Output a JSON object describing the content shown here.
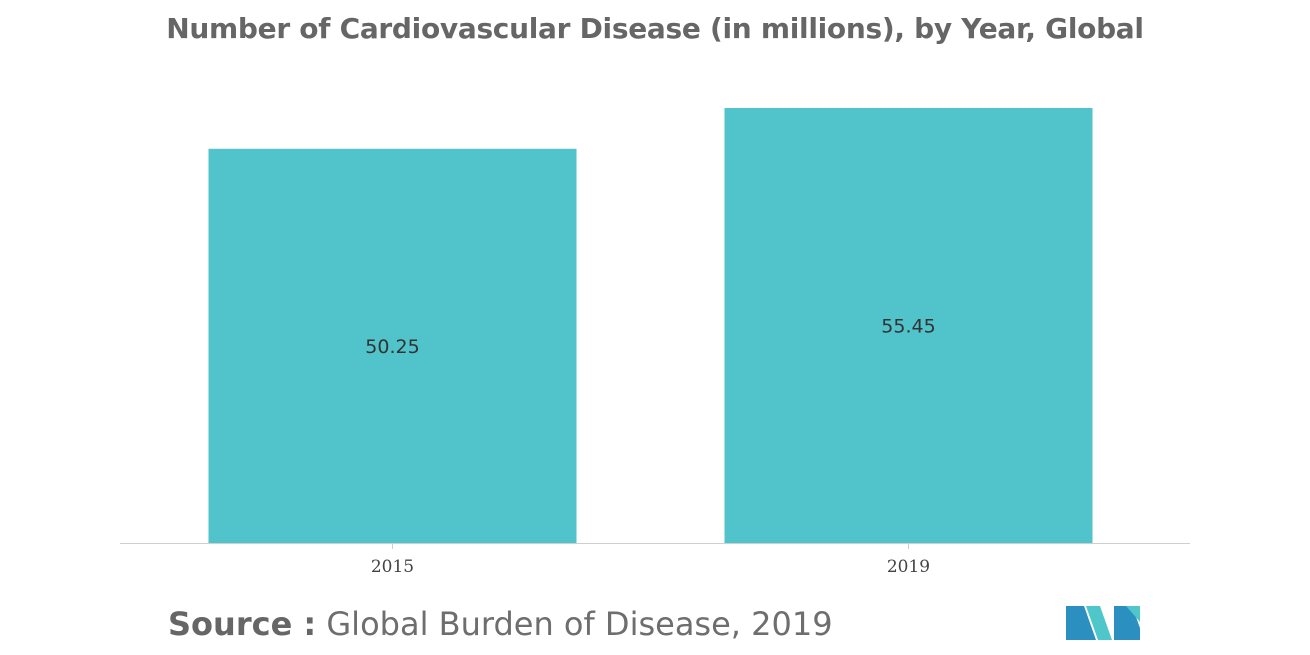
{
  "chart_data": {
    "type": "bar",
    "title": "Number of Cardiovascular Disease (in millions), by Year, Global",
    "categories": [
      "2015",
      "2019"
    ],
    "values": [
      50.25,
      55.45
    ],
    "value_labels": [
      "50.25",
      "55.45"
    ],
    "xlabel": "",
    "ylabel": "",
    "ylim": [
      0,
      55.45
    ],
    "grid": false,
    "legend": "none",
    "bar_color": "#51c3ca",
    "value_label_position": "center"
  },
  "source": {
    "label": "Source :",
    "text": "Global Burden of Disease, 2019"
  },
  "logo": {
    "icon": "mordor-intelligence-logo-icon",
    "colors": [
      "#2b8fbf",
      "#4fc6c9"
    ]
  }
}
